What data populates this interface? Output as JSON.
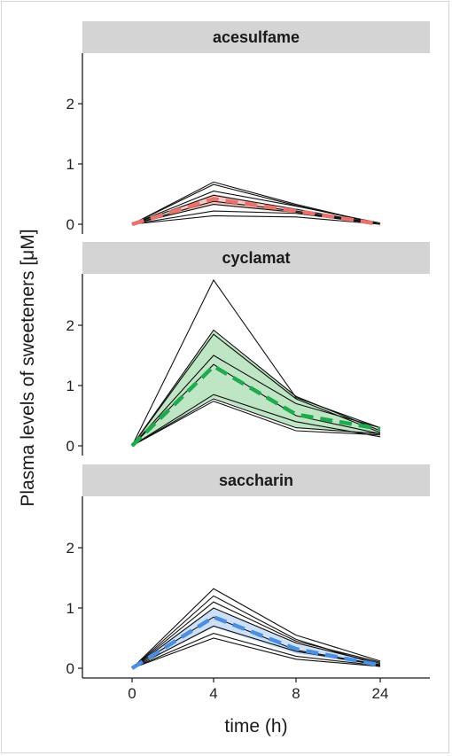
{
  "chart_data": {
    "type": "line",
    "ylabel": "Plasma levels of sweeteners [μM]",
    "xlabel": "time (h)",
    "x": [
      0,
      4,
      8,
      24
    ],
    "x_tick_labels": [
      "0",
      "4",
      "8",
      "24"
    ],
    "ylim": [
      0,
      2.9
    ],
    "y_ticks": [
      0,
      1,
      2
    ],
    "grid": false,
    "panels": [
      {
        "title": "acesulfame",
        "color": "#e8736c",
        "band_color": "#f4b7b2",
        "individuals": [
          [
            0,
            0.7,
            0.33,
            0.0
          ],
          [
            0,
            0.66,
            0.31,
            0.0
          ],
          [
            0,
            0.55,
            0.3,
            0.02
          ],
          [
            0,
            0.48,
            0.25,
            0.0
          ],
          [
            0,
            0.38,
            0.22,
            0.0
          ],
          [
            0,
            0.33,
            0.2,
            0.0
          ],
          [
            0,
            0.22,
            0.18,
            0.0
          ],
          [
            0,
            0.14,
            0.12,
            0.0
          ]
        ],
        "mean": [
          0,
          0.42,
          0.22,
          0.0
        ],
        "band_upper": [
          0,
          0.5,
          0.25,
          0.0
        ],
        "band_lower": [
          0,
          0.32,
          0.18,
          0.0
        ]
      },
      {
        "title": "cyclamat",
        "color": "#1faa4d",
        "band_color": "#a8dcb0",
        "individuals": [
          [
            0,
            2.75,
            0.8,
            0.3
          ],
          [
            0,
            1.92,
            0.82,
            0.25
          ],
          [
            0,
            1.85,
            0.78,
            0.22
          ],
          [
            0,
            1.5,
            0.7,
            0.3
          ],
          [
            0,
            1.35,
            0.5,
            0.2
          ],
          [
            0,
            0.85,
            0.4,
            0.15
          ],
          [
            0,
            0.78,
            0.3,
            0.2
          ],
          [
            0,
            0.74,
            0.25,
            0.18
          ]
        ],
        "mean": [
          0,
          1.32,
          0.52,
          0.28
        ],
        "band_upper": [
          0,
          1.9,
          0.82,
          0.3
        ],
        "band_lower": [
          0,
          0.8,
          0.3,
          0.2
        ]
      },
      {
        "title": "saccharin",
        "color": "#4a8fe0",
        "band_color": "#bcd5f5",
        "individuals": [
          [
            0,
            1.32,
            0.55,
            0.12
          ],
          [
            0,
            1.2,
            0.48,
            0.05
          ],
          [
            0,
            1.1,
            0.45,
            0.1
          ],
          [
            0,
            1.0,
            0.42,
            0.08
          ],
          [
            0,
            0.85,
            0.3,
            0.06
          ],
          [
            0,
            0.7,
            0.28,
            0.05
          ],
          [
            0,
            0.58,
            0.2,
            0.04
          ],
          [
            0,
            0.5,
            0.15,
            0.03
          ]
        ],
        "mean": [
          0,
          0.85,
          0.32,
          0.05
        ],
        "band_upper": [
          0,
          1.0,
          0.4,
          0.08
        ],
        "band_lower": [
          0,
          0.68,
          0.24,
          0.04
        ]
      }
    ]
  }
}
